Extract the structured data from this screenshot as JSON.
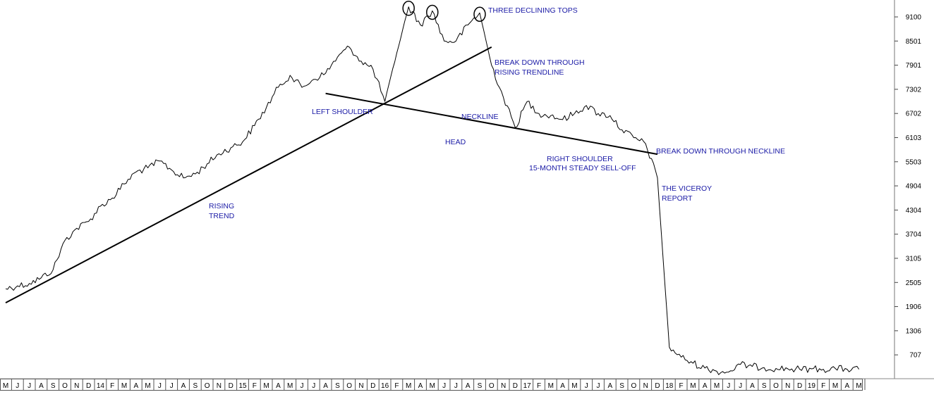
{
  "chart_data": {
    "type": "line",
    "x_axis_ticks": [
      "M",
      "J",
      "J",
      "A",
      "S",
      "O",
      "N",
      "D",
      "14",
      "F",
      "M",
      "A",
      "M",
      "J",
      "J",
      "A",
      "S",
      "O",
      "N",
      "D",
      "15",
      "F",
      "M",
      "A",
      "M",
      "J",
      "J",
      "A",
      "S",
      "O",
      "N",
      "D",
      "16",
      "F",
      "M",
      "A",
      "M",
      "J",
      "J",
      "A",
      "S",
      "O",
      "N",
      "D",
      "17",
      "F",
      "M",
      "A",
      "M",
      "J",
      "J",
      "A",
      "S",
      "O",
      "N",
      "D",
      "18",
      "F",
      "M",
      "A",
      "M",
      "J",
      "J",
      "A",
      "S",
      "O",
      "N",
      "D",
      "19",
      "F",
      "M",
      "A",
      "M"
    ],
    "y_axis_ticks": [
      9100,
      8501,
      7901,
      7302,
      6702,
      6103,
      5503,
      4904,
      4304,
      3704,
      3105,
      2505,
      1906,
      1306,
      707
    ],
    "ylim": [
      220,
      9450
    ],
    "x_range": [
      "2013-05",
      "2019-05"
    ],
    "series": [
      {
        "color": "#000000",
        "points": [
          [
            "2013-05",
            2350
          ],
          [
            "2013-06",
            2420
          ],
          [
            "2013-07",
            2480
          ],
          [
            "2013-08",
            2620
          ],
          [
            "2013-09",
            2820
          ],
          [
            "2013-10",
            3550
          ],
          [
            "2013-11",
            3850
          ],
          [
            "2013-12",
            4020
          ],
          [
            "2014-01",
            4400
          ],
          [
            "2014-02",
            4600
          ],
          [
            "2014-03",
            4950
          ],
          [
            "2014-04",
            5250
          ],
          [
            "2014-05",
            5350
          ],
          [
            "2014-06",
            5520
          ],
          [
            "2014-07",
            5300
          ],
          [
            "2014-08",
            5100
          ],
          [
            "2014-09",
            5200
          ],
          [
            "2014-10",
            5450
          ],
          [
            "2014-11",
            5700
          ],
          [
            "2014-12",
            5850
          ],
          [
            "2015-01",
            6000
          ],
          [
            "2015-02",
            6400
          ],
          [
            "2015-03",
            6850
          ],
          [
            "2015-04",
            7350
          ],
          [
            "2015-05",
            7650
          ],
          [
            "2015-06",
            7350
          ],
          [
            "2015-07",
            7550
          ],
          [
            "2015-08",
            7700
          ],
          [
            "2015-09",
            8100
          ],
          [
            "2015-10",
            8350
          ],
          [
            "2015-11",
            8000
          ],
          [
            "2015-12",
            7800
          ],
          [
            "2016-01",
            7000
          ],
          [
            "2016-02",
            8200
          ],
          [
            "2016-03",
            9350
          ],
          [
            "2016-04",
            8900
          ],
          [
            "2016-05",
            9250
          ],
          [
            "2016-06",
            8500
          ],
          [
            "2016-07",
            8500
          ],
          [
            "2016-08",
            8900
          ],
          [
            "2016-09",
            9200
          ],
          [
            "2016-10",
            7900
          ],
          [
            "2016-11",
            7100
          ],
          [
            "2016-12",
            6350
          ],
          [
            "2017-01",
            7000
          ],
          [
            "2017-02",
            6700
          ],
          [
            "2017-03",
            6650
          ],
          [
            "2017-04",
            6550
          ],
          [
            "2017-05",
            6700
          ],
          [
            "2017-06",
            6900
          ],
          [
            "2017-07",
            6700
          ],
          [
            "2017-08",
            6650
          ],
          [
            "2017-09",
            6300
          ],
          [
            "2017-10",
            6100
          ],
          [
            "2017-11",
            5950
          ],
          [
            "2017-12",
            5100
          ],
          [
            "2018-01",
            900
          ],
          [
            "2018-02",
            650
          ],
          [
            "2018-03",
            500
          ],
          [
            "2018-04",
            380
          ],
          [
            "2018-05",
            300
          ],
          [
            "2018-06",
            280
          ],
          [
            "2018-07",
            470
          ],
          [
            "2018-08",
            420
          ],
          [
            "2018-09",
            390
          ],
          [
            "2018-10",
            370
          ],
          [
            "2018-11",
            360
          ],
          [
            "2018-12",
            350
          ],
          [
            "2019-01",
            360
          ],
          [
            "2019-02",
            350
          ],
          [
            "2019-03",
            370
          ],
          [
            "2019-04",
            350
          ],
          [
            "2019-05",
            350
          ]
        ]
      }
    ],
    "trendlines": [
      {
        "name": "rising-trendline",
        "from": [
          "2013-05",
          2000
        ],
        "to": [
          "2016-10",
          8350
        ]
      },
      {
        "name": "neckline",
        "from": [
          "2015-08",
          7200
        ],
        "to": [
          "2017-12",
          5690
        ]
      }
    ],
    "top_markers": [
      [
        "2016-03",
        9350
      ],
      [
        "2016-05",
        9250
      ],
      [
        "2016-09",
        9200
      ]
    ],
    "annotations": [
      "THREE DECLINING TOPS",
      "BREAK DOWN THROUGH",
      "RISING TRENDLINE",
      "LEFT SHOULDER",
      "NECKLINE",
      "HEAD",
      "RIGHT SHOULDER",
      "15-MONTH STEADY SELL-OFF",
      "BREAK DOWN THROUGH NECKLINE",
      "THE VICEROY",
      "REPORT",
      "RISING",
      "TREND"
    ],
    "annotation_color": "#1a1aa6",
    "grid": false,
    "legend": "none"
  }
}
